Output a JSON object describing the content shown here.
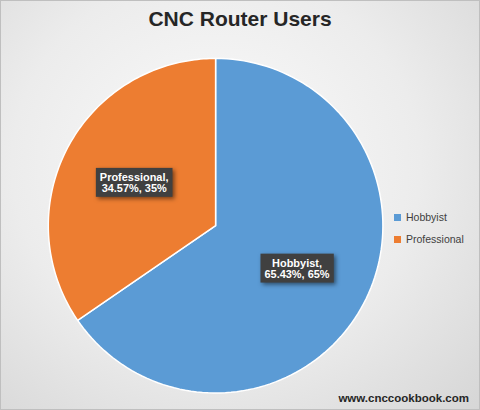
{
  "chart_data": {
    "type": "pie",
    "title": "CNC Router Users",
    "categories": [
      "Hobbyist",
      "Professional"
    ],
    "values": [
      65.43,
      34.57
    ],
    "value_labels": [
      "Hobbyist,\n65.43%, 65%",
      "Professional,\n34.57%, 35%"
    ],
    "colors": [
      "#5b9bd5",
      "#ed7d31"
    ],
    "data_labels": true,
    "legend": "right",
    "caption": "www.cnccookbook.com"
  }
}
